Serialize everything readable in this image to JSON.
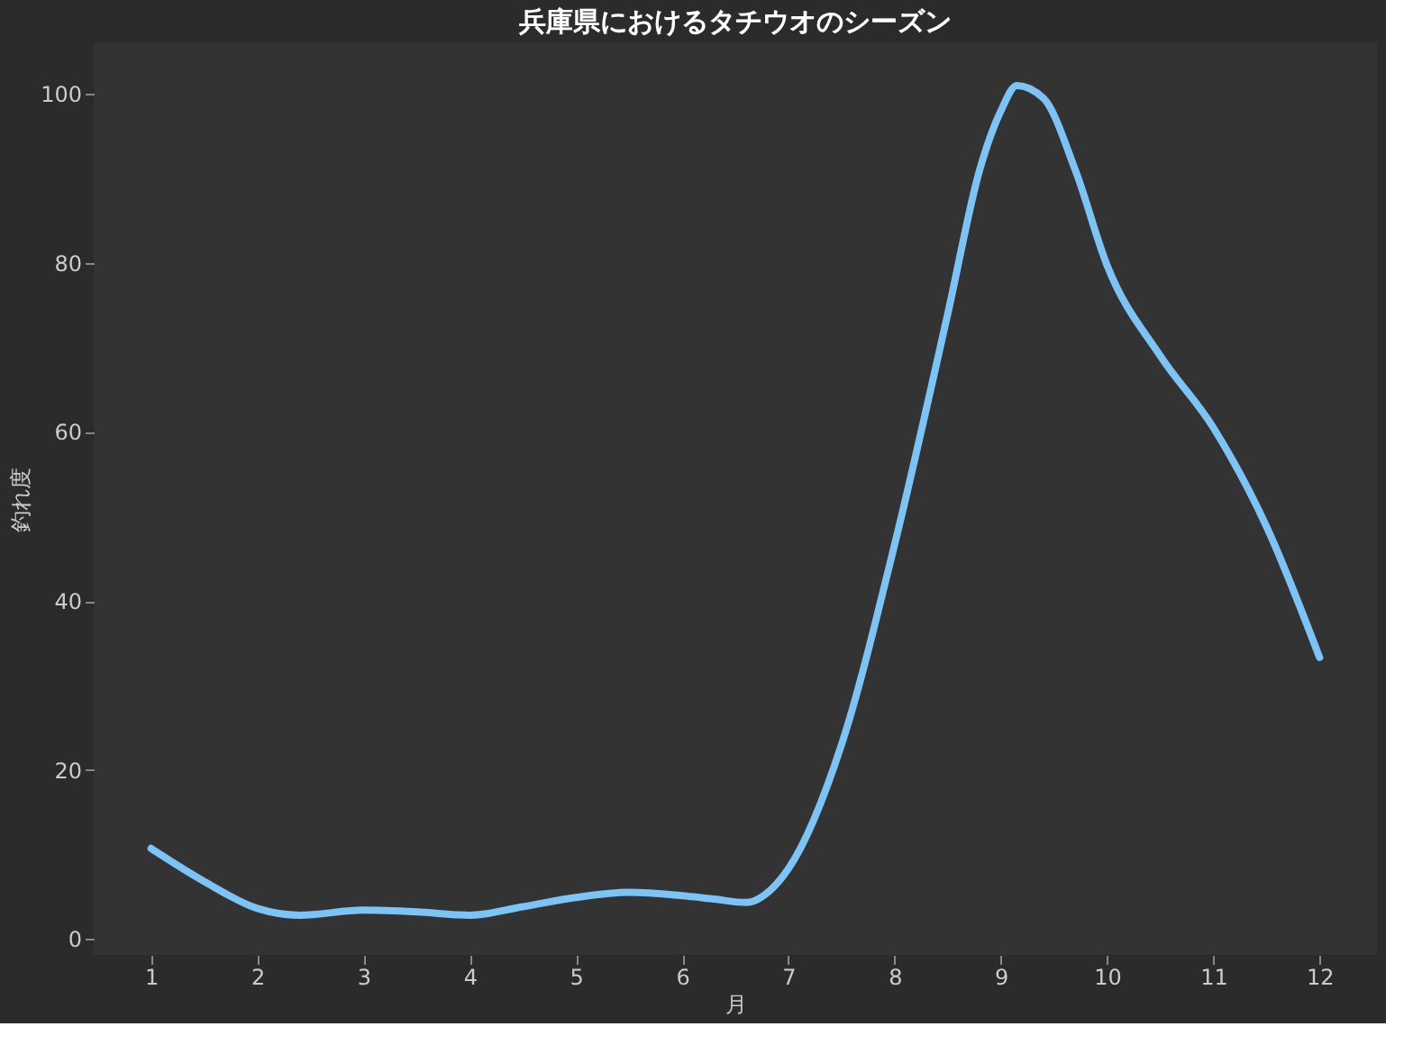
{
  "chart_data": {
    "type": "line",
    "title": "兵庫県におけるタチウオのシーズン",
    "xlabel": "月",
    "ylabel": "釣れ度",
    "x": [
      1,
      1.5,
      2,
      2.4,
      3,
      3.5,
      4,
      4.5,
      5,
      5.5,
      6,
      6.3,
      6.6,
      6.85,
      7,
      7.5,
      8,
      8.5,
      8.8,
      9,
      9.15,
      9.4,
      9.7,
      10,
      10.5,
      11,
      11.5,
      12
    ],
    "series": [
      {
        "color": "#7cc4f5",
        "values": [
          10.7,
          6.8,
          3.6,
          2.8,
          3.4,
          3.2,
          2.8,
          3.8,
          4.9,
          5.5,
          5.1,
          4.7,
          4.3,
          6,
          8.3,
          23,
          46.7,
          74,
          91,
          98,
          101,
          99.5,
          91,
          79.7,
          69,
          60.5,
          48.8,
          33.3
        ]
      }
    ],
    "xlim": [
      0.46,
      12.54
    ],
    "xticks": [
      1,
      2,
      3,
      4,
      5,
      6,
      7,
      8,
      9,
      10,
      11,
      12
    ],
    "ylim": [
      -1.9,
      106
    ],
    "yticks": [
      0,
      20,
      40,
      60,
      80,
      100
    ],
    "grid": false,
    "legend": false
  }
}
